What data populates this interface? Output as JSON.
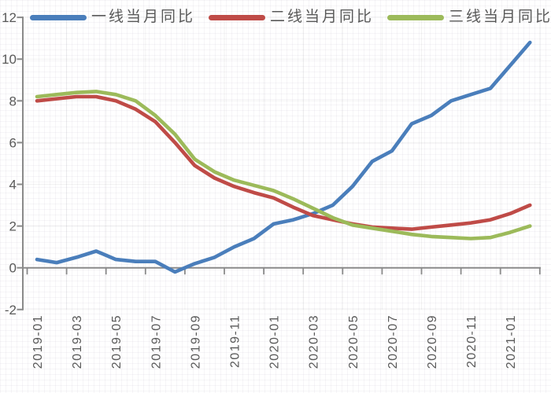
{
  "chart_data": {
    "type": "line",
    "title": "",
    "x": [
      "2019-01",
      "2019-02",
      "2019-03",
      "2019-04",
      "2019-05",
      "2019-06",
      "2019-07",
      "2019-08",
      "2019-09",
      "2019-10",
      "2019-11",
      "2019-12",
      "2020-01",
      "2020-02",
      "2020-03",
      "2020-04",
      "2020-05",
      "2020-06",
      "2020-07",
      "2020-08",
      "2020-09",
      "2020-10",
      "2020-11",
      "2020-12",
      "2021-01",
      "2021-02"
    ],
    "x_tick_labels": [
      "2019-01",
      "2019-03",
      "2019-05",
      "2019-07",
      "2019-09",
      "2019-11",
      "2020-01",
      "2020-03",
      "2020-05",
      "2020-07",
      "2020-09",
      "2020-11",
      "2021-01"
    ],
    "y_ticks": [
      12,
      10,
      8,
      6,
      4,
      2,
      0,
      -2
    ],
    "ylim": [
      -2,
      12
    ],
    "grid": true,
    "legend_position": "top",
    "series": [
      {
        "name": "一线当月同比",
        "color": "#4a7ebb",
        "values": [
          0.4,
          0.25,
          0.5,
          0.8,
          0.4,
          0.3,
          0.3,
          -0.2,
          0.2,
          0.5,
          1.0,
          1.4,
          2.1,
          2.3,
          2.6,
          3.0,
          3.9,
          5.1,
          5.6,
          6.9,
          7.3,
          8.0,
          8.3,
          8.6,
          9.7,
          10.8
        ]
      },
      {
        "name": "二线当月同比",
        "color": "#bf4b47",
        "values": [
          8.0,
          8.1,
          8.2,
          8.2,
          8.0,
          7.6,
          7.0,
          6.0,
          4.9,
          4.3,
          3.9,
          3.6,
          3.35,
          2.9,
          2.5,
          2.3,
          2.1,
          1.95,
          1.9,
          1.85,
          1.95,
          2.05,
          2.15,
          2.3,
          2.6,
          3.0
        ]
      },
      {
        "name": "三线当月同比",
        "color": "#9cba5a",
        "values": [
          8.2,
          8.3,
          8.4,
          8.45,
          8.3,
          8.0,
          7.3,
          6.4,
          5.2,
          4.6,
          4.2,
          3.95,
          3.7,
          3.3,
          2.85,
          2.4,
          2.05,
          1.9,
          1.75,
          1.6,
          1.5,
          1.45,
          1.4,
          1.45,
          1.7,
          2.0
        ]
      }
    ]
  },
  "colors": {
    "axis": "#8a8a8a",
    "tick_labels": "#595959",
    "gridline": "rgba(0,0,0,0.05)"
  }
}
